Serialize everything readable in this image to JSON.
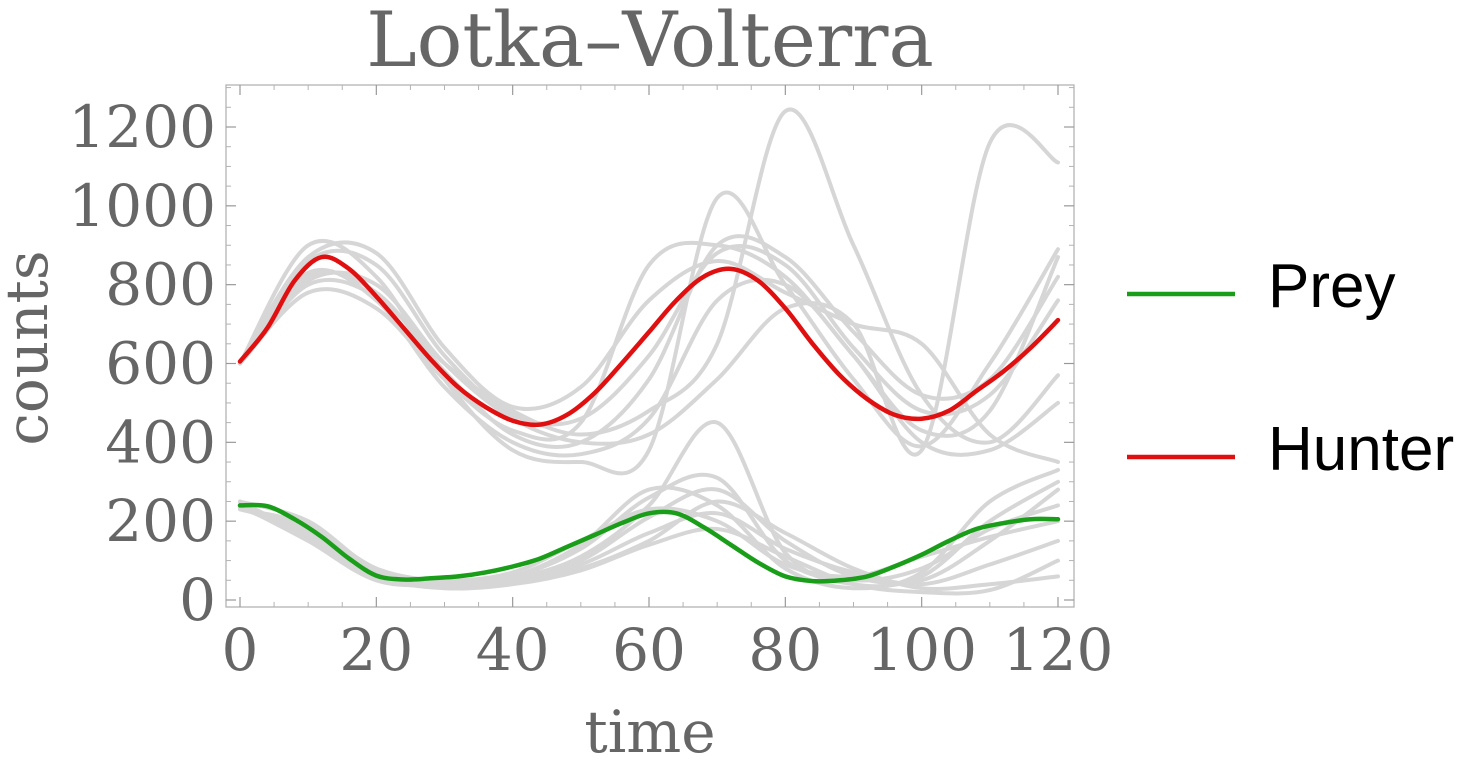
{
  "chart_data": {
    "type": "line",
    "title": "Lotka–Volterra",
    "xlabel": "time",
    "ylabel": "counts",
    "xlim": [
      0,
      120
    ],
    "ylim": [
      0,
      1300
    ],
    "x_ticks": [
      0,
      20,
      40,
      60,
      80,
      100,
      120
    ],
    "y_ticks": [
      0,
      200,
      400,
      600,
      800,
      1000,
      1200
    ],
    "legend_position": "right",
    "series": [
      {
        "name": "Prey",
        "color": "#1a9e1a",
        "x": [
          0,
          4,
          8,
          12,
          16,
          20,
          24,
          28,
          32,
          36,
          40,
          44,
          48,
          52,
          56,
          60,
          64,
          68,
          72,
          76,
          80,
          84,
          88,
          92,
          96,
          100,
          104,
          108,
          112,
          116,
          120
        ],
        "values": [
          240,
          238,
          205,
          160,
          105,
          62,
          52,
          55,
          60,
          70,
          85,
          105,
          135,
          165,
          195,
          220,
          220,
          185,
          140,
          95,
          60,
          48,
          50,
          60,
          85,
          115,
          150,
          180,
          195,
          205,
          205
        ]
      },
      {
        "name": "Hunter",
        "color": "#e01010",
        "x": [
          0,
          4,
          8,
          12,
          16,
          20,
          24,
          28,
          32,
          36,
          40,
          44,
          48,
          52,
          56,
          60,
          64,
          68,
          72,
          76,
          80,
          84,
          88,
          92,
          96,
          100,
          104,
          108,
          112,
          116,
          120
        ],
        "values": [
          605,
          690,
          810,
          870,
          840,
          770,
          690,
          610,
          540,
          490,
          455,
          445,
          470,
          525,
          600,
          680,
          760,
          820,
          840,
          810,
          740,
          650,
          570,
          510,
          470,
          460,
          480,
          530,
          580,
          640,
          710
        ]
      }
    ],
    "sample_trajectories": {
      "color": "#d6d6d6",
      "x": [
        0,
        10,
        20,
        30,
        40,
        50,
        60,
        70,
        80,
        90,
        100,
        110,
        120
      ],
      "prey": [
        [
          230,
          180,
          70,
          45,
          60,
          130,
          260,
          310,
          100,
          50,
          80,
          180,
          240
        ],
        [
          240,
          170,
          60,
          40,
          55,
          110,
          240,
          450,
          120,
          40,
          60,
          200,
          300
        ],
        [
          250,
          160,
          55,
          35,
          50,
          100,
          210,
          280,
          150,
          60,
          50,
          150,
          280
        ],
        [
          240,
          150,
          50,
          40,
          60,
          140,
          280,
          240,
          80,
          30,
          70,
          250,
          330
        ],
        [
          230,
          190,
          80,
          50,
          70,
          150,
          230,
          200,
          90,
          60,
          110,
          160,
          200
        ],
        [
          240,
          170,
          65,
          45,
          50,
          90,
          170,
          220,
          130,
          70,
          40,
          90,
          150
        ],
        [
          250,
          200,
          75,
          40,
          45,
          80,
          150,
          250,
          170,
          80,
          30,
          40,
          60
        ],
        [
          235,
          160,
          60,
          30,
          40,
          75,
          140,
          180,
          110,
          40,
          20,
          25,
          100
        ]
      ],
      "hunter": [
        [
          600,
          860,
          850,
          620,
          470,
          460,
          620,
          880,
          850,
          640,
          480,
          520,
          760
        ],
        [
          600,
          820,
          780,
          580,
          420,
          400,
          560,
          900,
          870,
          680,
          520,
          560,
          820
        ],
        [
          600,
          780,
          740,
          560,
          430,
          450,
          850,
          900,
          820,
          620,
          430,
          480,
          870
        ],
        [
          600,
          870,
          880,
          640,
          490,
          540,
          760,
          860,
          780,
          700,
          650,
          420,
          350
        ],
        [
          600,
          830,
          760,
          540,
          400,
          370,
          460,
          760,
          800,
          620,
          400,
          380,
          500
        ],
        [
          600,
          800,
          770,
          600,
          480,
          420,
          480,
          650,
          1240,
          900,
          520,
          400,
          570
        ],
        [
          600,
          900,
          820,
          560,
          380,
          350,
          380,
          1020,
          800,
          560,
          390,
          600,
          890
        ],
        [
          600,
          810,
          800,
          600,
          460,
          400,
          420,
          560,
          740,
          700,
          380,
          1160,
          1110
        ]
      ]
    }
  }
}
